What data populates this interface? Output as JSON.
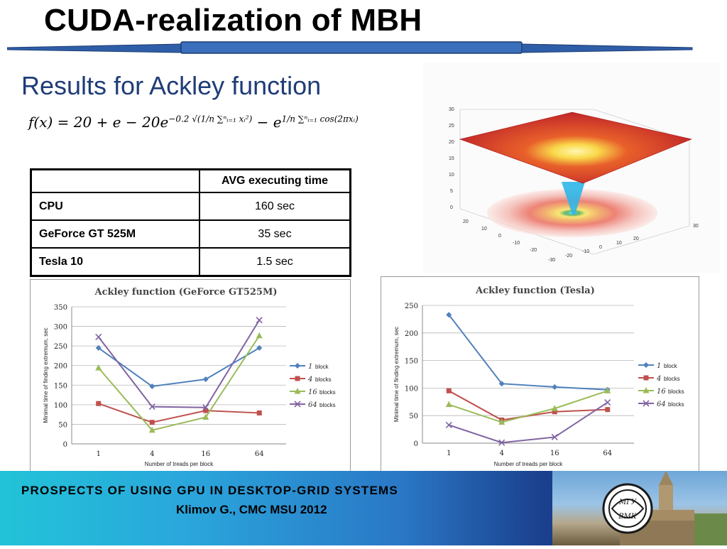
{
  "title": "CUDA-realization of MBH",
  "subtitle": "Results for Ackley function",
  "formula": {
    "lhs": "f(x) = 20 + e − 20e",
    "exp1": "−0.2 √(1/n ∑ⁿᵢ₌₁ xᵢ²)",
    "mid": " − e",
    "exp2": "1/n ∑ⁿᵢ₌₁ cos(2πxᵢ)"
  },
  "table": {
    "header": "AVG executing time",
    "rows": [
      {
        "name": "CPU",
        "value": "160 sec"
      },
      {
        "name": "GeForce GT 525M",
        "value": "35 sec"
      },
      {
        "name": "Tesla 10",
        "value": "1.5 sec"
      }
    ]
  },
  "surface_plot": {
    "z_ticks": [
      "30",
      "25",
      "20",
      "15",
      "10",
      "5",
      "0"
    ],
    "x_ticks": [
      "-30",
      "-20",
      "-10",
      "0",
      "10",
      "20",
      "30"
    ],
    "y_ticks": [
      "30",
      "20",
      "10",
      "0",
      "-10",
      "-20",
      "-30"
    ]
  },
  "chart_data": [
    {
      "type": "line",
      "title": "Ackley function (GeForce GT525M)",
      "xlabel": "Number of treads per block",
      "ylabel": "Minimal time of finding extremum, sec",
      "categories": [
        "1",
        "4",
        "16",
        "64"
      ],
      "ylim": [
        0,
        350
      ],
      "yticks": [
        "0",
        "50",
        "100",
        "150",
        "200",
        "250",
        "300",
        "350"
      ],
      "grid": true,
      "legend_position": "right",
      "series": [
        {
          "name": "1",
          "suffix": "block",
          "color": "#4f81bd",
          "marker": "diamond",
          "values": [
            245,
            147,
            165,
            245
          ]
        },
        {
          "name": "4",
          "suffix": "blocks",
          "color": "#c0504d",
          "marker": "square",
          "values": [
            103,
            55,
            85,
            79
          ]
        },
        {
          "name": "16",
          "suffix": "blocks",
          "color": "#9bbb59",
          "marker": "triangle",
          "values": [
            194,
            35,
            68,
            276
          ]
        },
        {
          "name": "64",
          "suffix": "blocks",
          "color": "#8064a2",
          "marker": "x",
          "values": [
            273,
            95,
            93,
            316
          ]
        }
      ]
    },
    {
      "type": "line",
      "title": "Ackley function (Tesla)",
      "xlabel": "Number of treads per block",
      "ylabel": "Minimal time of finding extremum, sec",
      "categories": [
        "1",
        "4",
        "16",
        "64"
      ],
      "ylim": [
        0,
        250
      ],
      "yticks": [
        "0",
        "50",
        "100",
        "150",
        "200",
        "250"
      ],
      "grid": true,
      "legend_position": "right",
      "series": [
        {
          "name": "1",
          "suffix": "block",
          "color": "#4f81bd",
          "marker": "diamond",
          "values": [
            233,
            108,
            102,
            97
          ]
        },
        {
          "name": "4",
          "suffix": "blocks",
          "color": "#c0504d",
          "marker": "square",
          "values": [
            95,
            42,
            57,
            61
          ]
        },
        {
          "name": "16",
          "suffix": "blocks",
          "color": "#9bbb59",
          "marker": "triangle",
          "values": [
            70,
            38,
            63,
            95
          ]
        },
        {
          "name": "64",
          "suffix": "blocks",
          "color": "#8064a2",
          "marker": "x",
          "values": [
            33,
            1,
            11,
            74
          ]
        }
      ]
    }
  ],
  "footer": {
    "line1": "PROSPECTS  OF  USING  GPU  IN  DESKTOP-GRID  SYSTEMS",
    "line2": "Klimov G., CMC MSU 2012",
    "logo_text_top": "МГУ",
    "logo_text_bottom": "ВМК"
  }
}
